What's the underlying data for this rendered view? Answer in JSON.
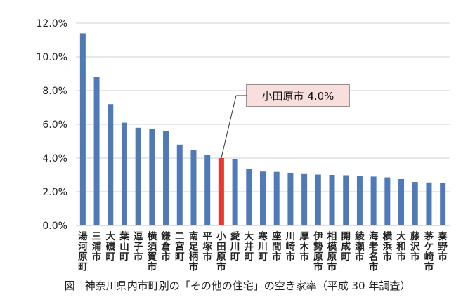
{
  "caption": {
    "label": "図",
    "text": "神奈川県内市町別の「その他の住宅」の空き家率（平成 30 年調査）"
  },
  "annotation": {
    "text": "小田原市 4.0%",
    "box_fill": "#f9dede",
    "border_color": "#555555"
  },
  "colors": {
    "bar": "#4f7ab7",
    "highlight": "#e8392b",
    "grid": "#d0d0d0"
  },
  "chart_data": {
    "type": "bar",
    "title": "",
    "xlabel": "",
    "ylabel": "",
    "ylim": [
      0,
      12
    ],
    "yticks": [
      "0.0%",
      "2.0%",
      "4.0%",
      "6.0%",
      "8.0%",
      "10.0%",
      "12.0%"
    ],
    "grid": true,
    "highlight_index": 10,
    "categories": [
      "湯河原町",
      "三浦市",
      "大磯町",
      "葉山町",
      "逗子市",
      "横須賀市",
      "鎌倉市",
      "二宮町",
      "南足柄市",
      "平塚市",
      "小田原市",
      "愛川町",
      "大井町",
      "寒川町",
      "座間市",
      "川崎市",
      "厚木市",
      "伊勢原市",
      "相模原市",
      "開成町",
      "綾瀬市",
      "海老名市",
      "横浜市",
      "大和市",
      "藤沢市",
      "茅ケ崎市",
      "秦野市"
    ],
    "values": [
      11.4,
      8.8,
      7.2,
      6.1,
      5.8,
      5.75,
      5.6,
      4.8,
      4.5,
      4.2,
      4.0,
      3.95,
      3.35,
      3.2,
      3.18,
      3.1,
      3.05,
      3.02,
      3.0,
      2.98,
      2.95,
      2.9,
      2.85,
      2.75,
      2.58,
      2.55,
      2.52
    ]
  }
}
